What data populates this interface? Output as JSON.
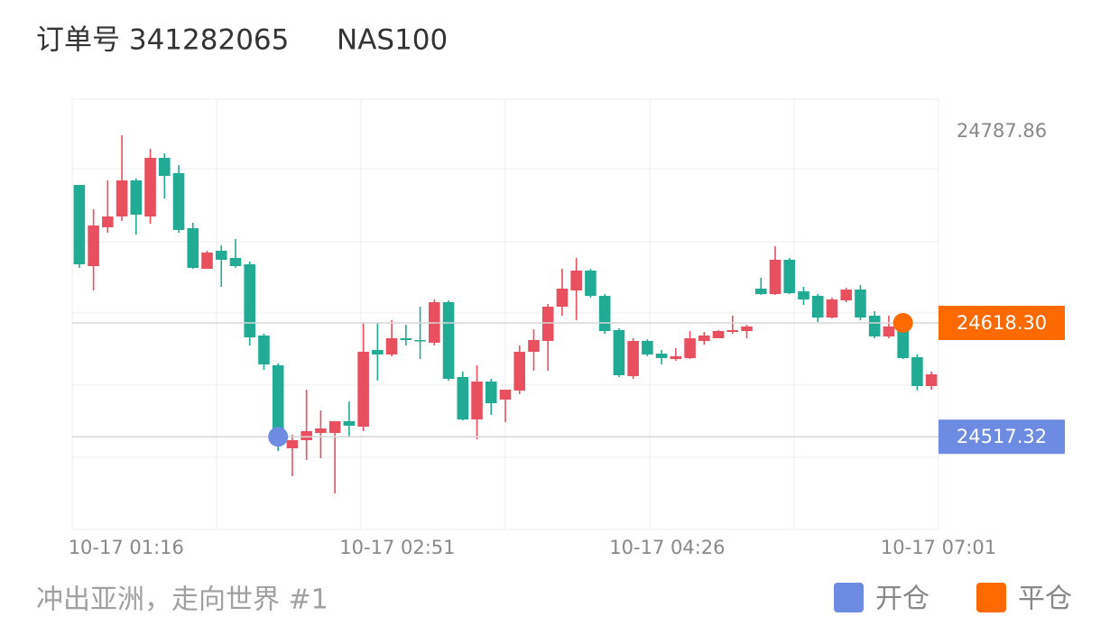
{
  "chart_data": {
    "type": "candlestick",
    "title": "订单号 341282065",
    "subtitle": "NAS100",
    "footer": "冲出亚洲，走向世界 #1",
    "up_color": "#e8505f",
    "down_color": "#22ab94",
    "xlim": [
      -0.5,
      60.5
    ],
    "xticks": [
      {
        "value": 3.3,
        "label": "10-17 01:16"
      },
      {
        "value": 22.4,
        "label": "10-17 02:51"
      },
      {
        "value": 41.4,
        "label": "10-17 04:26"
      },
      {
        "value": 60.5,
        "label": "10-17 07:01"
      }
    ],
    "ylim": [
      24435.1,
      24816.7
    ],
    "yticks": [
      24787.86
    ],
    "open": [
      24740.7,
      24668.7,
      24703.1,
      24712.7,
      24744.7,
      24712.7,
      24764.7,
      24751.1,
      24702.3,
      24666.3,
      24682.3,
      24675.9,
      24670.3,
      24607.1,
      24580.7,
      24507.1,
      24514.3,
      24520.7,
      24520.7,
      24531.1,
      24526.3,
      24594.3,
      24590.3,
      24604.7,
      24603.1,
      24600.7,
      24636.7,
      24570.3,
      24532.7,
      24566.3,
      24550.3,
      24558.3,
      24592.7,
      24602.3,
      24632.7,
      24647.1,
      24664.7,
      24642.3,
      24611.9,
      24571.1,
      24602.3,
      24591.1,
      24586.3,
      24587.1,
      24602.3,
      24604.7,
      24610.3,
      24611.1,
      24648.7,
      24643.9,
      24674.3,
      24646.3,
      24642.3,
      24623.1,
      24638.3,
      24647.9,
      24624.7,
      24606.3,
      24618.3,
      24587.9,
      24562.3
    ],
    "high": [
      24740.7,
      24719.1,
      24744.7,
      24784.7,
      24746.3,
      24772.7,
      24768.7,
      24758.3,
      24707.1,
      24682.3,
      24687.1,
      24692.7,
      24672.7,
      24608.7,
      24582.3,
      24519.1,
      24559.1,
      24540.7,
      24531.1,
      24548.7,
      24618.3,
      24618.3,
      24620.7,
      24616.7,
      24632.7,
      24639.1,
      24638.3,
      24575.1,
      24580.7,
      24568.7,
      24559.1,
      24598.3,
      24612.7,
      24635.1,
      24666.3,
      24675.9,
      24666.3,
      24643.9,
      24613.5,
      24604.7,
      24603.9,
      24594.3,
      24595.9,
      24611.1,
      24610.3,
      24611.9,
      24624.7,
      24616.7,
      24658.3,
      24686.3,
      24675.9,
      24650.3,
      24643.9,
      24640.7,
      24649.5,
      24651.9,
      24628.7,
      24624.7,
      24624.7,
      24590.3,
      24575.1
    ],
    "low": [
      24667.1,
      24647.1,
      24698.3,
      24708.7,
      24696.7,
      24706.3,
      24728.7,
      24698.3,
      24666.3,
      24666.3,
      24650.3,
      24667.1,
      24598.3,
      24576.7,
      24504.7,
      24482.3,
      24496.7,
      24498.3,
      24467.1,
      24516.7,
      24522.3,
      24567.1,
      24588.7,
      24598.3,
      24586.3,
      24598.3,
      24567.1,
      24531.9,
      24515.1,
      24536.7,
      24530.3,
      24555.1,
      24575.9,
      24575.9,
      24624.7,
      24620.7,
      24640.7,
      24608.7,
      24570.3,
      24568.7,
      24588.7,
      24581.5,
      24584.7,
      24586.3,
      24599.1,
      24604.7,
      24608.7,
      24604.7,
      24643.1,
      24643.1,
      24643.9,
      24634.3,
      24619.1,
      24622.3,
      24636.7,
      24620.7,
      24604.7,
      24604.7,
      24586.3,
      24558.3,
      24559.1
    ],
    "close": [
      24670.3,
      24704.7,
      24712.7,
      24744.7,
      24714.3,
      24764.7,
      24748.7,
      24700.7,
      24667.1,
      24680.7,
      24674.3,
      24668.7,
      24605.5,
      24581.5,
      24511.1,
      24514.3,
      24522.3,
      24524.7,
      24531.1,
      24527.1,
      24592.7,
      24590.3,
      24604.7,
      24603.1,
      24602.3,
      24636.7,
      24568.7,
      24532.7,
      24566.3,
      24547.1,
      24559.1,
      24592.7,
      24603.1,
      24632.7,
      24648.7,
      24664.7,
      24642.3,
      24611.1,
      24571.9,
      24602.3,
      24590.3,
      24587.1,
      24588.7,
      24604.7,
      24607.1,
      24611.1,
      24611.9,
      24615.1,
      24643.9,
      24674.3,
      24644.7,
      24639.1,
      24623.1,
      24639.1,
      24647.9,
      24623.1,
      24606.3,
      24615.1,
      24587.1,
      24562.3,
      24572.7
    ],
    "markers": [
      {
        "name": "开仓",
        "color": "#6d8be0",
        "x": 14,
        "price": 24517.32
      },
      {
        "name": "平仓",
        "color": "#ff6a00",
        "x": 58,
        "price": {
          "value": 24618.3,
          "label": "24618.30"
        }
      }
    ]
  }
}
